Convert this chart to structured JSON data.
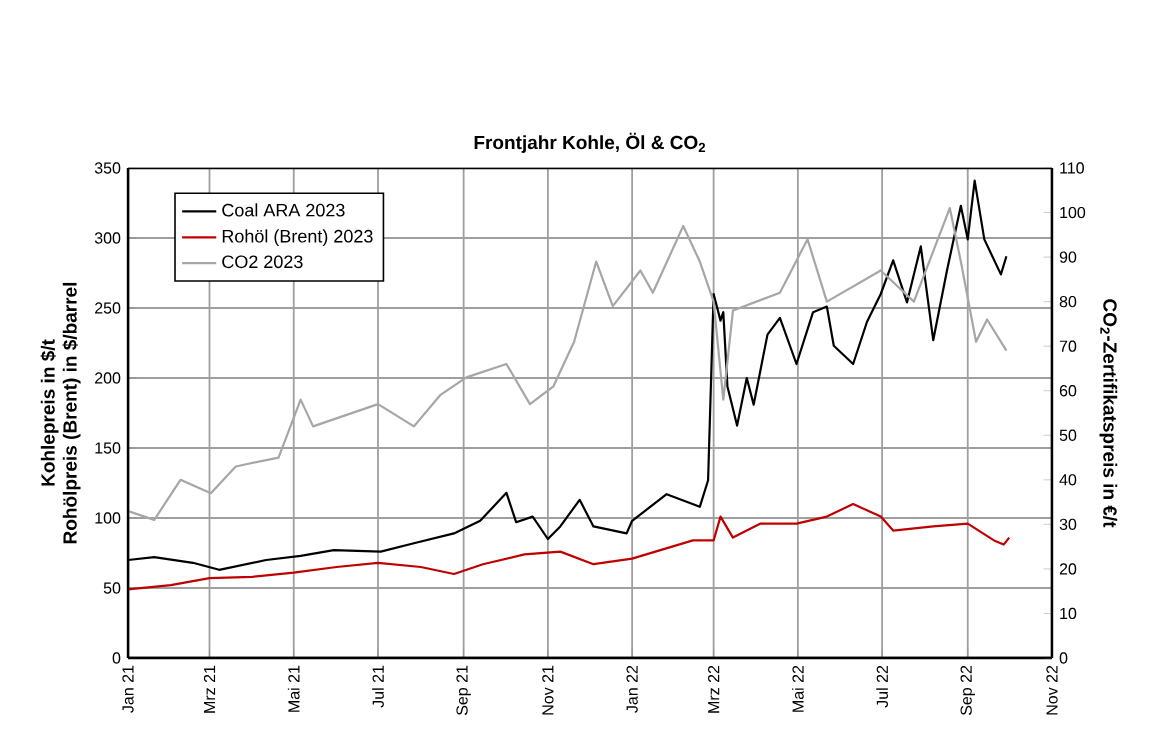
{
  "chart_data": {
    "type": "line",
    "title": "Frontjahr Kohle, Öl & CO$_{2}$",
    "ylabel": [
      "Kohlepreis in $/t",
      "Rohölpreis (Brent) in $/barrel"
    ],
    "y2label": "CO$_{2}$-Zertifikatspreis in €/t",
    "xlim": [
      "2021-01-01",
      "2022-11-01"
    ],
    "xticks": [
      {
        "value": "2021-01-01",
        "label": "Jan 21"
      },
      {
        "value": "2021-03-01",
        "label": "Mrz 21"
      },
      {
        "value": "2021-05-01",
        "label": "Mai 21"
      },
      {
        "value": "2021-07-01",
        "label": "Jul 21"
      },
      {
        "value": "2021-09-01",
        "label": "Sep 21"
      },
      {
        "value": "2021-11-01",
        "label": "Nov 21"
      },
      {
        "value": "2022-01-01",
        "label": "Jan 22"
      },
      {
        "value": "2022-03-01",
        "label": "Mrz 22"
      },
      {
        "value": "2022-05-01",
        "label": "Mai 22"
      },
      {
        "value": "2022-07-01",
        "label": "Jul 22"
      },
      {
        "value": "2022-09-01",
        "label": "Sep 22"
      },
      {
        "value": "2022-11-01",
        "label": "Nov 22"
      }
    ],
    "ylim": [
      0,
      350
    ],
    "yticks": [
      0,
      50,
      100,
      150,
      200,
      250,
      300,
      350
    ],
    "y2lim": [
      0,
      110
    ],
    "y2ticks": [
      0,
      10,
      20,
      30,
      40,
      50,
      60,
      70,
      80,
      90,
      100,
      110
    ],
    "grid": true,
    "legend": "top left",
    "series": [
      {
        "name": "Coal ARA 2023",
        "color": "#000000",
        "x": [
          "2021-01-01",
          "2021-01-20",
          "2021-02-17",
          "2021-03-08",
          "2021-04-11",
          "2021-05-06",
          "2021-05-30",
          "2021-07-03",
          "2021-07-27",
          "2021-08-25",
          "2021-09-13",
          "2021-10-02",
          "2021-10-09",
          "2021-10-21",
          "2021-11-01",
          "2021-11-10",
          "2021-11-24",
          "2021-12-04",
          "2021-12-28",
          "2022-01-01",
          "2022-01-26",
          "2022-02-19",
          "2022-02-25",
          "2022-03-01",
          "2022-03-06",
          "2022-03-08",
          "2022-03-11",
          "2022-03-18",
          "2022-03-25",
          "2022-03-30",
          "2022-04-09",
          "2022-04-18",
          "2022-04-30",
          "2022-05-12",
          "2022-05-22",
          "2022-05-27",
          "2022-06-10",
          "2022-06-20",
          "2022-06-30",
          "2022-07-09",
          "2022-07-19",
          "2022-07-29",
          "2022-08-07",
          "2022-08-17",
          "2022-08-27",
          "2022-09-01",
          "2022-09-06",
          "2022-09-13",
          "2022-09-25",
          "2022-09-29"
        ],
        "values": [
          70,
          72,
          68,
          63,
          70,
          73,
          77,
          76,
          82,
          89,
          98,
          118,
          97,
          101,
          85,
          94,
          113,
          94,
          89,
          98,
          117,
          108,
          127,
          260,
          241,
          247,
          194,
          166,
          200,
          181,
          231,
          243,
          210,
          247,
          251,
          223,
          210,
          240,
          260,
          284,
          254,
          294,
          227,
          277,
          323,
          299,
          341,
          299,
          274,
          287
        ]
      },
      {
        "name": "Rohöl (Brent) 2023",
        "color": "#c00000",
        "x": [
          "2021-01-01",
          "2021-02-01",
          "2021-03-01",
          "2021-04-01",
          "2021-05-01",
          "2021-06-01",
          "2021-07-01",
          "2021-08-01",
          "2021-08-25",
          "2021-09-15",
          "2021-10-15",
          "2021-11-10",
          "2021-12-04",
          "2022-01-01",
          "2022-02-14",
          "2022-03-01",
          "2022-03-06",
          "2022-03-15",
          "2022-04-04",
          "2022-04-30",
          "2022-05-22",
          "2022-06-10",
          "2022-06-30",
          "2022-07-09",
          "2022-08-07",
          "2022-09-01",
          "2022-09-20",
          "2022-09-27",
          "2022-10-01"
        ],
        "values": [
          49,
          52,
          57,
          58,
          61,
          65,
          68,
          65,
          60,
          67,
          74,
          76,
          67,
          71,
          84,
          84,
          101,
          86,
          96,
          96,
          101,
          110,
          101,
          91,
          94,
          96,
          84,
          81,
          86
        ]
      },
      {
        "name": "CO2 2023",
        "color": "#a6a6a6",
        "axis": "y2",
        "x": [
          "2021-01-01",
          "2021-01-20",
          "2021-02-08",
          "2021-03-02",
          "2021-03-20",
          "2021-04-20",
          "2021-05-06",
          "2021-05-15",
          "2021-07-01",
          "2021-07-27",
          "2021-08-15",
          "2021-09-03",
          "2021-10-02",
          "2021-10-19",
          "2021-11-05",
          "2021-11-20",
          "2021-12-06",
          "2021-12-18",
          "2022-01-07",
          "2022-01-16",
          "2022-02-07",
          "2022-02-19",
          "2022-03-01",
          "2022-03-08",
          "2022-03-15",
          "2022-04-18",
          "2022-05-08",
          "2022-05-22",
          "2022-06-30",
          "2022-07-24",
          "2022-08-19",
          "2022-08-27",
          "2022-09-07",
          "2022-09-15",
          "2022-09-29"
        ],
        "values": [
          33,
          31,
          40,
          37,
          43,
          45,
          58,
          52,
          57,
          52,
          59,
          63,
          66,
          57,
          61,
          71,
          89,
          79,
          87,
          82,
          97,
          89,
          80,
          58,
          78,
          82,
          94,
          80,
          87,
          80,
          101,
          89,
          71,
          76,
          69
        ]
      }
    ]
  }
}
